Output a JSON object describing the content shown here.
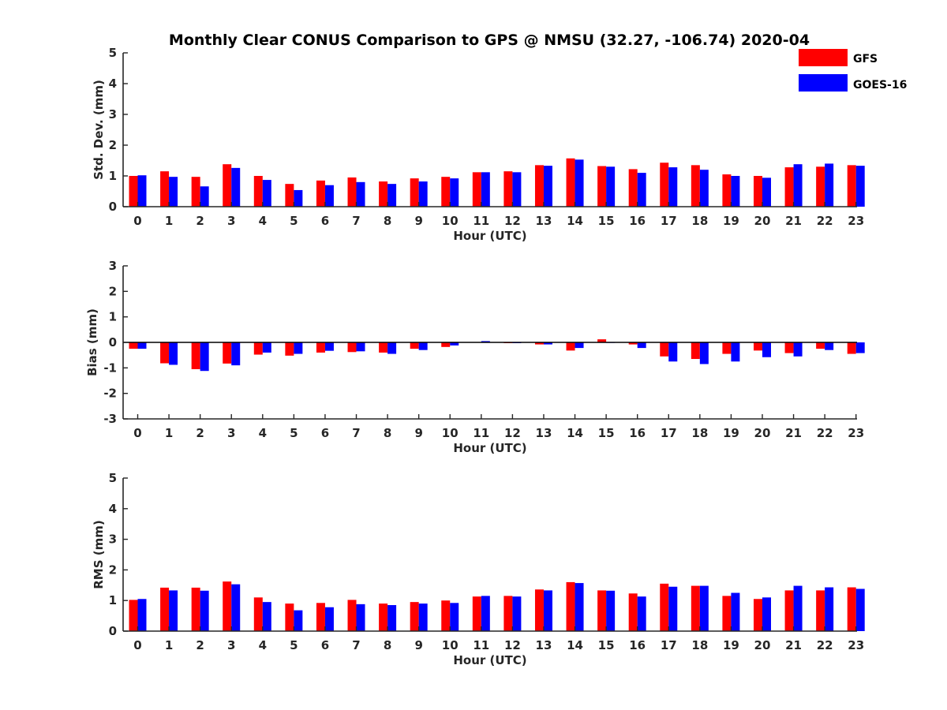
{
  "title": "Monthly Clear CONUS Comparison to GPS @ NMSU (32.27, -106.74) 2020-04",
  "colors": {
    "GFS": "#ff0000",
    "GOES-16": "#0000ff",
    "axis": "#262626"
  },
  "legend": {
    "placement": "top-right",
    "entries": [
      {
        "name": "GFS",
        "color": "#ff0000"
      },
      {
        "name": "GOES-16",
        "color": "#0000ff"
      }
    ]
  },
  "chart_data": [
    {
      "type": "bar",
      "xlabel": "Hour (UTC)",
      "ylabel": "Std. Dev. (mm)",
      "ylim": [
        0,
        5
      ],
      "yticks": [
        0,
        1,
        2,
        3,
        4,
        5
      ],
      "categories": [
        "0",
        "1",
        "2",
        "3",
        "4",
        "5",
        "6",
        "7",
        "8",
        "9",
        "10",
        "11",
        "12",
        "13",
        "14",
        "15",
        "16",
        "17",
        "18",
        "19",
        "20",
        "21",
        "22",
        "23"
      ],
      "series": [
        {
          "name": "GFS",
          "color": "#ff0000",
          "values": [
            1.0,
            1.15,
            0.97,
            1.38,
            1.0,
            0.74,
            0.85,
            0.95,
            0.82,
            0.92,
            0.97,
            1.12,
            1.15,
            1.35,
            1.57,
            1.32,
            1.22,
            1.43,
            1.35,
            1.05,
            1.0,
            1.28,
            1.3,
            1.35
          ]
        },
        {
          "name": "GOES-16",
          "color": "#0000ff",
          "values": [
            1.02,
            0.97,
            0.66,
            1.26,
            0.87,
            0.54,
            0.7,
            0.8,
            0.74,
            0.82,
            0.92,
            1.12,
            1.12,
            1.33,
            1.53,
            1.3,
            1.1,
            1.28,
            1.2,
            1.0,
            0.94,
            1.38,
            1.4,
            1.33
          ]
        }
      ]
    },
    {
      "type": "bar",
      "xlabel": "Hour (UTC)",
      "ylabel": "Bias (mm)",
      "ylim": [
        -3,
        3
      ],
      "yticks": [
        -3,
        -2,
        -1,
        0,
        1,
        2,
        3
      ],
      "categories": [
        "0",
        "1",
        "2",
        "3",
        "4",
        "5",
        "6",
        "7",
        "8",
        "9",
        "10",
        "11",
        "12",
        "13",
        "14",
        "15",
        "16",
        "17",
        "18",
        "19",
        "20",
        "21",
        "22",
        "23"
      ],
      "series": [
        {
          "name": "GFS",
          "color": "#ff0000",
          "values": [
            -0.25,
            -0.82,
            -1.05,
            -0.83,
            -0.48,
            -0.52,
            -0.4,
            -0.38,
            -0.4,
            -0.25,
            -0.18,
            0.0,
            -0.03,
            -0.08,
            -0.32,
            0.12,
            -0.08,
            -0.55,
            -0.65,
            -0.45,
            -0.32,
            -0.42,
            -0.25,
            -0.45
          ]
        },
        {
          "name": "GOES-16",
          "color": "#0000ff",
          "values": [
            -0.25,
            -0.88,
            -1.12,
            -0.9,
            -0.4,
            -0.45,
            -0.33,
            -0.35,
            -0.45,
            -0.3,
            -0.12,
            0.05,
            -0.03,
            -0.08,
            -0.22,
            -0.02,
            -0.22,
            -0.75,
            -0.85,
            -0.75,
            -0.58,
            -0.55,
            -0.3,
            -0.42
          ]
        }
      ]
    },
    {
      "type": "bar",
      "xlabel": "Hour (UTC)",
      "ylabel": "RMS (mm)",
      "ylim": [
        0,
        5
      ],
      "yticks": [
        0,
        1,
        2,
        3,
        4,
        5
      ],
      "categories": [
        "0",
        "1",
        "2",
        "3",
        "4",
        "5",
        "6",
        "7",
        "8",
        "9",
        "10",
        "11",
        "12",
        "13",
        "14",
        "15",
        "16",
        "17",
        "18",
        "19",
        "20",
        "21",
        "22",
        "23"
      ],
      "series": [
        {
          "name": "GFS",
          "color": "#ff0000",
          "values": [
            1.02,
            1.42,
            1.42,
            1.62,
            1.1,
            0.9,
            0.92,
            1.02,
            0.9,
            0.95,
            1.0,
            1.13,
            1.15,
            1.36,
            1.6,
            1.33,
            1.23,
            1.55,
            1.48,
            1.15,
            1.05,
            1.33,
            1.33,
            1.43
          ]
        },
        {
          "name": "GOES-16",
          "color": "#0000ff",
          "values": [
            1.05,
            1.33,
            1.32,
            1.53,
            0.95,
            0.68,
            0.78,
            0.88,
            0.85,
            0.9,
            0.92,
            1.15,
            1.13,
            1.33,
            1.57,
            1.32,
            1.13,
            1.45,
            1.48,
            1.25,
            1.1,
            1.48,
            1.43,
            1.38
          ]
        }
      ]
    }
  ]
}
